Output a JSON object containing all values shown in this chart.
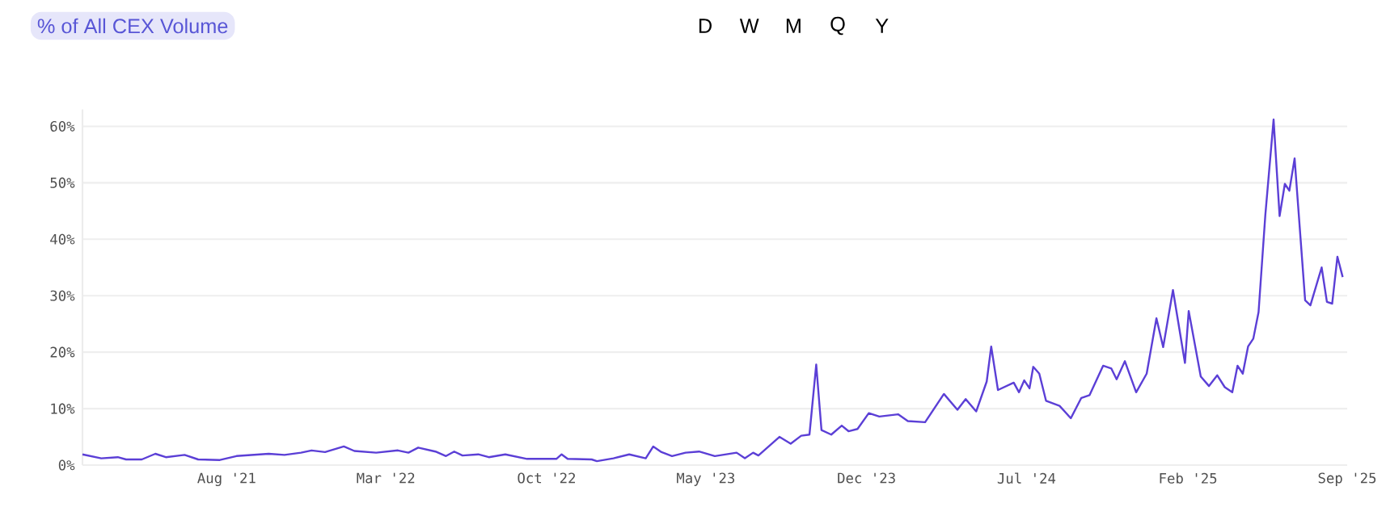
{
  "chart_data": {
    "type": "line",
    "annotations": [
      "% of All CEX Volume",
      "D",
      "W",
      "M",
      "Q",
      "Y"
    ],
    "x": [
      "2021-01-21",
      "2021-02-15",
      "2021-03-09",
      "2021-03-20",
      "2021-04-10",
      "2021-04-28",
      "2021-05-12",
      "2021-06-06",
      "2021-06-24",
      "2021-07-23",
      "2021-08-14",
      "2021-09-26",
      "2021-10-17",
      "2021-11-08",
      "2021-11-22",
      "2021-12-10",
      "2022-01-04",
      "2022-01-18",
      "2022-02-16",
      "2022-03-17",
      "2022-03-31",
      "2022-04-13",
      "2022-05-06",
      "2022-05-20",
      "2022-05-31",
      "2022-06-11",
      "2022-07-02",
      "2022-07-16",
      "2022-08-07",
      "2022-09-05",
      "2022-10-14",
      "2022-10-21",
      "2022-10-29",
      "2022-11-30",
      "2022-12-07",
      "2022-12-29",
      "2023-01-19",
      "2023-02-10",
      "2023-02-20",
      "2023-03-03",
      "2023-03-17",
      "2023-04-04",
      "2023-04-22",
      "2023-05-13",
      "2023-06-11",
      "2023-06-22",
      "2023-07-03",
      "2023-07-10",
      "2023-08-07",
      "2023-08-22",
      "2023-09-05",
      "2023-09-16",
      "2023-09-25",
      "2023-10-02",
      "2023-10-15",
      "2023-10-29",
      "2023-11-07",
      "2023-11-19",
      "2023-12-04",
      "2023-12-18",
      "2024-01-12",
      "2024-01-25",
      "2024-02-17",
      "2024-03-13",
      "2024-03-31",
      "2024-04-11",
      "2024-04-25",
      "2024-05-09",
      "2024-05-15",
      "2024-05-24",
      "2024-06-14",
      "2024-06-21",
      "2024-06-28",
      "2024-07-05",
      "2024-07-10",
      "2024-07-18",
      "2024-07-27",
      "2024-08-14",
      "2024-08-29",
      "2024-09-12",
      "2024-09-23",
      "2024-10-11",
      "2024-10-22",
      "2024-10-29",
      "2024-11-09",
      "2024-11-24",
      "2024-12-08",
      "2024-12-21",
      "2024-12-30",
      "2025-01-12",
      "2025-01-28",
      "2025-02-02",
      "2025-02-18",
      "2025-03-01",
      "2025-03-12",
      "2025-03-22",
      "2025-04-01",
      "2025-04-08",
      "2025-04-15",
      "2025-04-22",
      "2025-04-29",
      "2025-05-06",
      "2025-05-15",
      "2025-05-26",
      "2025-06-03",
      "2025-06-10",
      "2025-06-16",
      "2025-06-23",
      "2025-07-07",
      "2025-07-14",
      "2025-07-29",
      "2025-08-05",
      "2025-08-12",
      "2025-08-19",
      "2025-08-26"
    ],
    "series": [
      {
        "color": "#5b3fd6",
        "values": [
          1.9,
          1.2,
          1.4,
          1.0,
          1.0,
          2.0,
          1.4,
          1.8,
          1.0,
          0.9,
          1.6,
          2.0,
          1.8,
          2.2,
          2.6,
          2.3,
          3.3,
          2.5,
          2.2,
          2.6,
          2.2,
          3.1,
          2.4,
          1.6,
          2.4,
          1.7,
          1.9,
          1.4,
          1.9,
          1.1,
          1.1,
          1.9,
          1.1,
          1.0,
          0.7,
          1.2,
          1.9,
          1.2,
          3.3,
          2.3,
          1.6,
          2.2,
          2.4,
          1.6,
          2.2,
          1.2,
          2.2,
          1.7,
          5.0,
          3.8,
          5.2,
          5.4,
          17.8,
          6.2,
          5.4,
          7.0,
          6.0,
          6.4,
          9.2,
          8.6,
          9.0,
          7.8,
          7.6,
          12.6,
          9.8,
          11.7,
          9.5,
          14.8,
          21.0,
          13.3,
          14.6,
          12.9,
          15.0,
          13.6,
          17.4,
          16.2,
          11.4,
          10.5,
          8.3,
          11.9,
          12.4,
          17.6,
          17.1,
          15.2,
          18.4,
          12.9,
          16.2,
          26.0,
          20.9,
          31.0,
          18.1,
          27.3,
          15.7,
          14.0,
          15.9,
          13.8,
          12.9,
          17.6,
          16.2,
          21.0,
          22.4,
          27.1,
          44.3,
          61.2,
          44.1,
          49.8,
          48.6,
          54.3,
          29.2,
          28.3,
          35.0,
          28.9,
          28.6,
          36.9,
          33.3
        ]
      }
    ],
    "xlim": [
      "2021-01-21",
      "2025-09-01"
    ],
    "xticks": [
      {
        "value": "2021-08-01",
        "label": "Aug '21"
      },
      {
        "value": "2022-03-01",
        "label": "Mar '22"
      },
      {
        "value": "2022-10-01",
        "label": "Oct '22"
      },
      {
        "value": "2023-05-01",
        "label": "May '23"
      },
      {
        "value": "2023-12-01",
        "label": "Dec '23"
      },
      {
        "value": "2024-07-01",
        "label": "Jul '24"
      },
      {
        "value": "2025-02-01",
        "label": "Feb '25"
      },
      {
        "value": "2025-09-01",
        "label": "Sep '25"
      }
    ],
    "ylim": [
      0,
      63
    ],
    "yticks": [
      {
        "value": 0,
        "label": "0%"
      },
      {
        "value": 10,
        "label": "10%"
      },
      {
        "value": 20,
        "label": "20%"
      },
      {
        "value": 30,
        "label": "30%"
      },
      {
        "value": 40,
        "label": "40%"
      },
      {
        "value": 50,
        "label": "50%"
      },
      {
        "value": 60,
        "label": "60%"
      }
    ],
    "grid": "y",
    "marker": "none",
    "line_style": "solid"
  }
}
